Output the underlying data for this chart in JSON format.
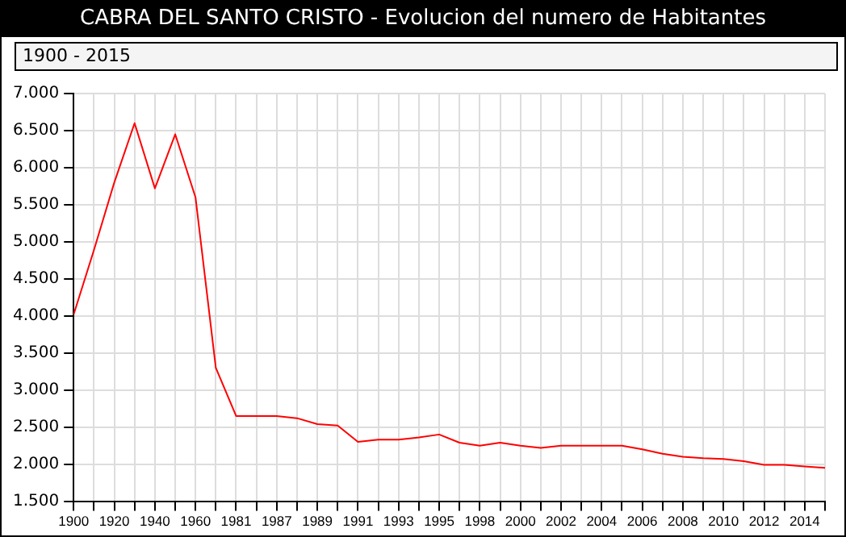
{
  "chart_data": {
    "type": "line",
    "title": "CABRA DEL SANTO CRISTO - Evolucion del numero de Habitantes",
    "subtitle": "1900 - 2015",
    "categories": [
      "1900",
      null,
      "1920",
      null,
      "1940",
      null,
      "1960",
      null,
      "1981",
      null,
      "1987",
      null,
      "1989",
      null,
      "1991",
      null,
      "1993",
      null,
      "1995",
      null,
      "1998",
      null,
      "2000",
      null,
      "2002",
      null,
      "2004",
      null,
      "2006",
      null,
      "2008",
      null,
      "2010",
      null,
      "2012",
      null,
      "2014",
      null
    ],
    "series": [
      {
        "color": "#ff0000",
        "values": [
          4020,
          4890,
          5800,
          6600,
          5720,
          6450,
          5600,
          3300,
          2650,
          2650,
          2650,
          2620,
          2540,
          2520,
          2300,
          2330,
          2330,
          2360,
          2400,
          2290,
          2250,
          2290,
          2250,
          2220,
          2250,
          2250,
          2250,
          2250,
          2200,
          2140,
          2100,
          2080,
          2070,
          2040,
          1990,
          1990,
          1970,
          1950
        ]
      }
    ],
    "ylim": [
      1500,
      7000
    ],
    "yticks": [
      {
        "value": 1500,
        "label": "1.500"
      },
      {
        "value": 2000,
        "label": "2.000"
      },
      {
        "value": 2500,
        "label": "2.500"
      },
      {
        "value": 3000,
        "label": "3.000"
      },
      {
        "value": 3500,
        "label": "3.500"
      },
      {
        "value": 4000,
        "label": "4.000"
      },
      {
        "value": 4500,
        "label": "4.500"
      },
      {
        "value": 5000,
        "label": "5.000"
      },
      {
        "value": 5500,
        "label": "5.500"
      },
      {
        "value": 6000,
        "label": "6.000"
      },
      {
        "value": 6500,
        "label": "6.500"
      },
      {
        "value": 7000,
        "label": "7.000"
      }
    ],
    "grid": true,
    "marker": "none",
    "line_style": "solid"
  }
}
